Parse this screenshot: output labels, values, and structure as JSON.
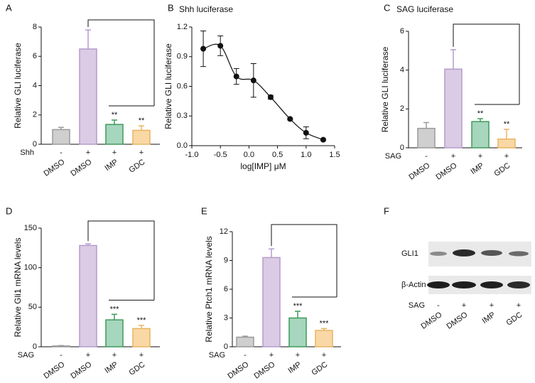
{
  "chart_data": [
    {
      "type": "bar",
      "panel": "A",
      "ylabel": "Relative GLI luciferase",
      "treatment_label": "Shh",
      "treatment": [
        "-",
        "+",
        "+",
        "+"
      ],
      "categories": [
        "DMSO",
        "DMSO",
        "IMP",
        "GDC"
      ],
      "values": [
        1.0,
        6.5,
        1.35,
        0.95
      ],
      "errors": [
        0.15,
        1.3,
        0.3,
        0.3
      ],
      "annotations": [
        null,
        null,
        "**",
        "**"
      ],
      "colors": [
        "#cfcfcf",
        "#dccbe4",
        "#a6d6bd",
        "#f9d8a6"
      ],
      "edge_colors": [
        "#9a9a9a",
        "#b49ccc",
        "#3f9a5b",
        "#e8b460"
      ],
      "ylim": [
        0,
        8
      ],
      "yticks": [
        0,
        2,
        4,
        6,
        8
      ]
    },
    {
      "type": "scatter",
      "panel": "B",
      "title": "Shh luciferase",
      "xlabel": "log[IMP] μM",
      "ylabel": "Relative GLI luciferase",
      "x": [
        -0.8,
        -0.5,
        -0.22,
        0.08,
        0.38,
        0.72,
        1.0,
        1.3
      ],
      "values": [
        0.98,
        1.01,
        0.7,
        0.66,
        0.49,
        0.27,
        0.13,
        0.06
      ],
      "errors": [
        0.18,
        0.1,
        0.08,
        0.17,
        0.02,
        0.01,
        0.06,
        0.01
      ],
      "color": "#111111",
      "xlim": [
        -1,
        1.5
      ],
      "xticks": [
        {
          "value": -1,
          "label": "-1.0"
        },
        -0.5,
        {
          "value": 0,
          "label": "0.0"
        },
        0.5,
        {
          "value": 1,
          "label": "1.0"
        },
        1.5
      ],
      "ylim": [
        0,
        1.2
      ],
      "yticks": [
        {
          "value": 0,
          "label": "0.0"
        },
        0.3,
        0.6,
        0.9,
        1.2
      ]
    },
    {
      "type": "bar",
      "panel": "C",
      "title": "SAG luciferase",
      "ylabel": "Relative GLI luciferase",
      "treatment_label": "SAG",
      "treatment": [
        "-",
        "+",
        "+",
        "+"
      ],
      "categories": [
        "DMSO",
        "DMSO",
        "IMP",
        "GDC"
      ],
      "values": [
        1.0,
        4.05,
        1.35,
        0.45
      ],
      "errors": [
        0.3,
        1.0,
        0.15,
        0.5
      ],
      "annotations": [
        null,
        null,
        "**",
        "**"
      ],
      "colors": [
        "#cfcfcf",
        "#dccbe4",
        "#a6d6bd",
        "#f9d8a6"
      ],
      "edge_colors": [
        "#9a9a9a",
        "#b49ccc",
        "#3f9a5b",
        "#e8b460"
      ],
      "ylim": [
        0,
        6
      ],
      "yticks": [
        0,
        2,
        4,
        6
      ]
    },
    {
      "type": "bar",
      "panel": "D",
      "ylabel": "Relative Gli1 mRNA levels",
      "treatment_label": "SAG",
      "treatment": [
        "-",
        "+",
        "+",
        "+"
      ],
      "categories": [
        "DMSO",
        "DMSO",
        "IMP",
        "GDC"
      ],
      "values": [
        1,
        128,
        34,
        23
      ],
      "errors": [
        0.5,
        2,
        7,
        4
      ],
      "annotations": [
        null,
        null,
        "***",
        "***"
      ],
      "colors": [
        "#cfcfcf",
        "#dccbe4",
        "#a6d6bd",
        "#f9d8a6"
      ],
      "edge_colors": [
        "#9a9a9a",
        "#b49ccc",
        "#3f9a5b",
        "#e8b460"
      ],
      "ylim": [
        0,
        150
      ],
      "yticks": [
        0,
        50,
        100,
        150
      ]
    },
    {
      "type": "bar",
      "panel": "E",
      "ylabel": "Relative Ptch1 mRNA levels",
      "treatment_label": "SAG",
      "treatment": [
        "-",
        "+",
        "+",
        "+"
      ],
      "categories": [
        "DMSO",
        "DMSO",
        "IMP",
        "GDC"
      ],
      "values": [
        1.0,
        9.3,
        3.0,
        1.7
      ],
      "errors": [
        0.1,
        0.9,
        0.7,
        0.2
      ],
      "annotations": [
        null,
        null,
        "***",
        "***"
      ],
      "colors": [
        "#cfcfcf",
        "#dccbe4",
        "#a6d6bd",
        "#f9d8a6"
      ],
      "edge_colors": [
        "#9a9a9a",
        "#b49ccc",
        "#3f9a5b",
        "#e8b460"
      ],
      "ylim": [
        0,
        12
      ],
      "yticks": [
        0,
        3,
        6,
        9,
        12
      ]
    }
  ],
  "blot": {
    "panel": "F",
    "rows": [
      "GLI1",
      "β-Actin"
    ],
    "treatment_label": "SAG",
    "treatment": [
      "-",
      "+",
      "+",
      "+"
    ],
    "categories": [
      "DMSO",
      "DMSO",
      "IMP",
      "GDC"
    ]
  }
}
